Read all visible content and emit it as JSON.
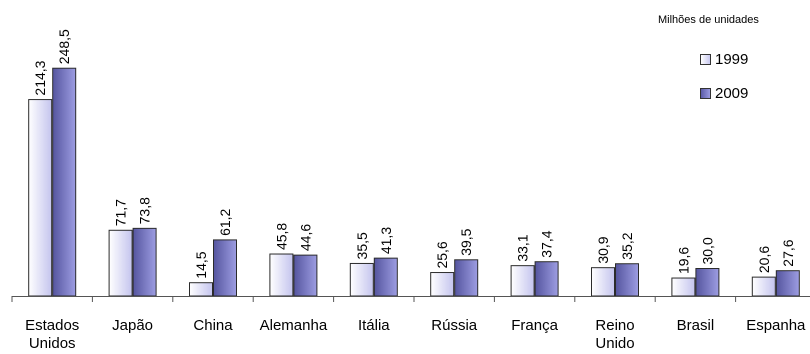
{
  "unit_note": "Milhões de unidades",
  "legend": [
    {
      "label": "1999",
      "color": "#d6d6f5"
    },
    {
      "label": "2009",
      "color": "#6f6fc4"
    }
  ],
  "chart_data": {
    "type": "bar",
    "categories": [
      [
        "Estados",
        "Unidos"
      ],
      [
        "Japão"
      ],
      [
        "China"
      ],
      [
        "Alemanha"
      ],
      [
        "Itália"
      ],
      [
        "Rússia"
      ],
      [
        "França"
      ],
      [
        "Reino",
        "Unido"
      ],
      [
        "Brasil"
      ],
      [
        "Espanha"
      ]
    ],
    "series": [
      {
        "name": "1999",
        "values": [
          214.3,
          71.7,
          14.5,
          45.8,
          35.5,
          25.6,
          33.1,
          30.9,
          19.6,
          20.6
        ],
        "labels": [
          "214,3",
          "71,7",
          "14,5",
          "45,8",
          "35,5",
          "25,6",
          "33,1",
          "30,9",
          "19,6",
          "20,6"
        ]
      },
      {
        "name": "2009",
        "values": [
          248.5,
          73.8,
          61.2,
          44.6,
          41.3,
          39.5,
          37.4,
          35.2,
          30.0,
          27.6
        ],
        "labels": [
          "248,5",
          "73,8",
          "61,2",
          "44,6",
          "41,3",
          "39,5",
          "37,4",
          "35,2",
          "30,0",
          "27,6"
        ]
      }
    ],
    "title": "",
    "xlabel": "",
    "ylabel": "",
    "ylim": [
      0,
      260
    ],
    "grid": false,
    "legend_position": "top-right"
  }
}
